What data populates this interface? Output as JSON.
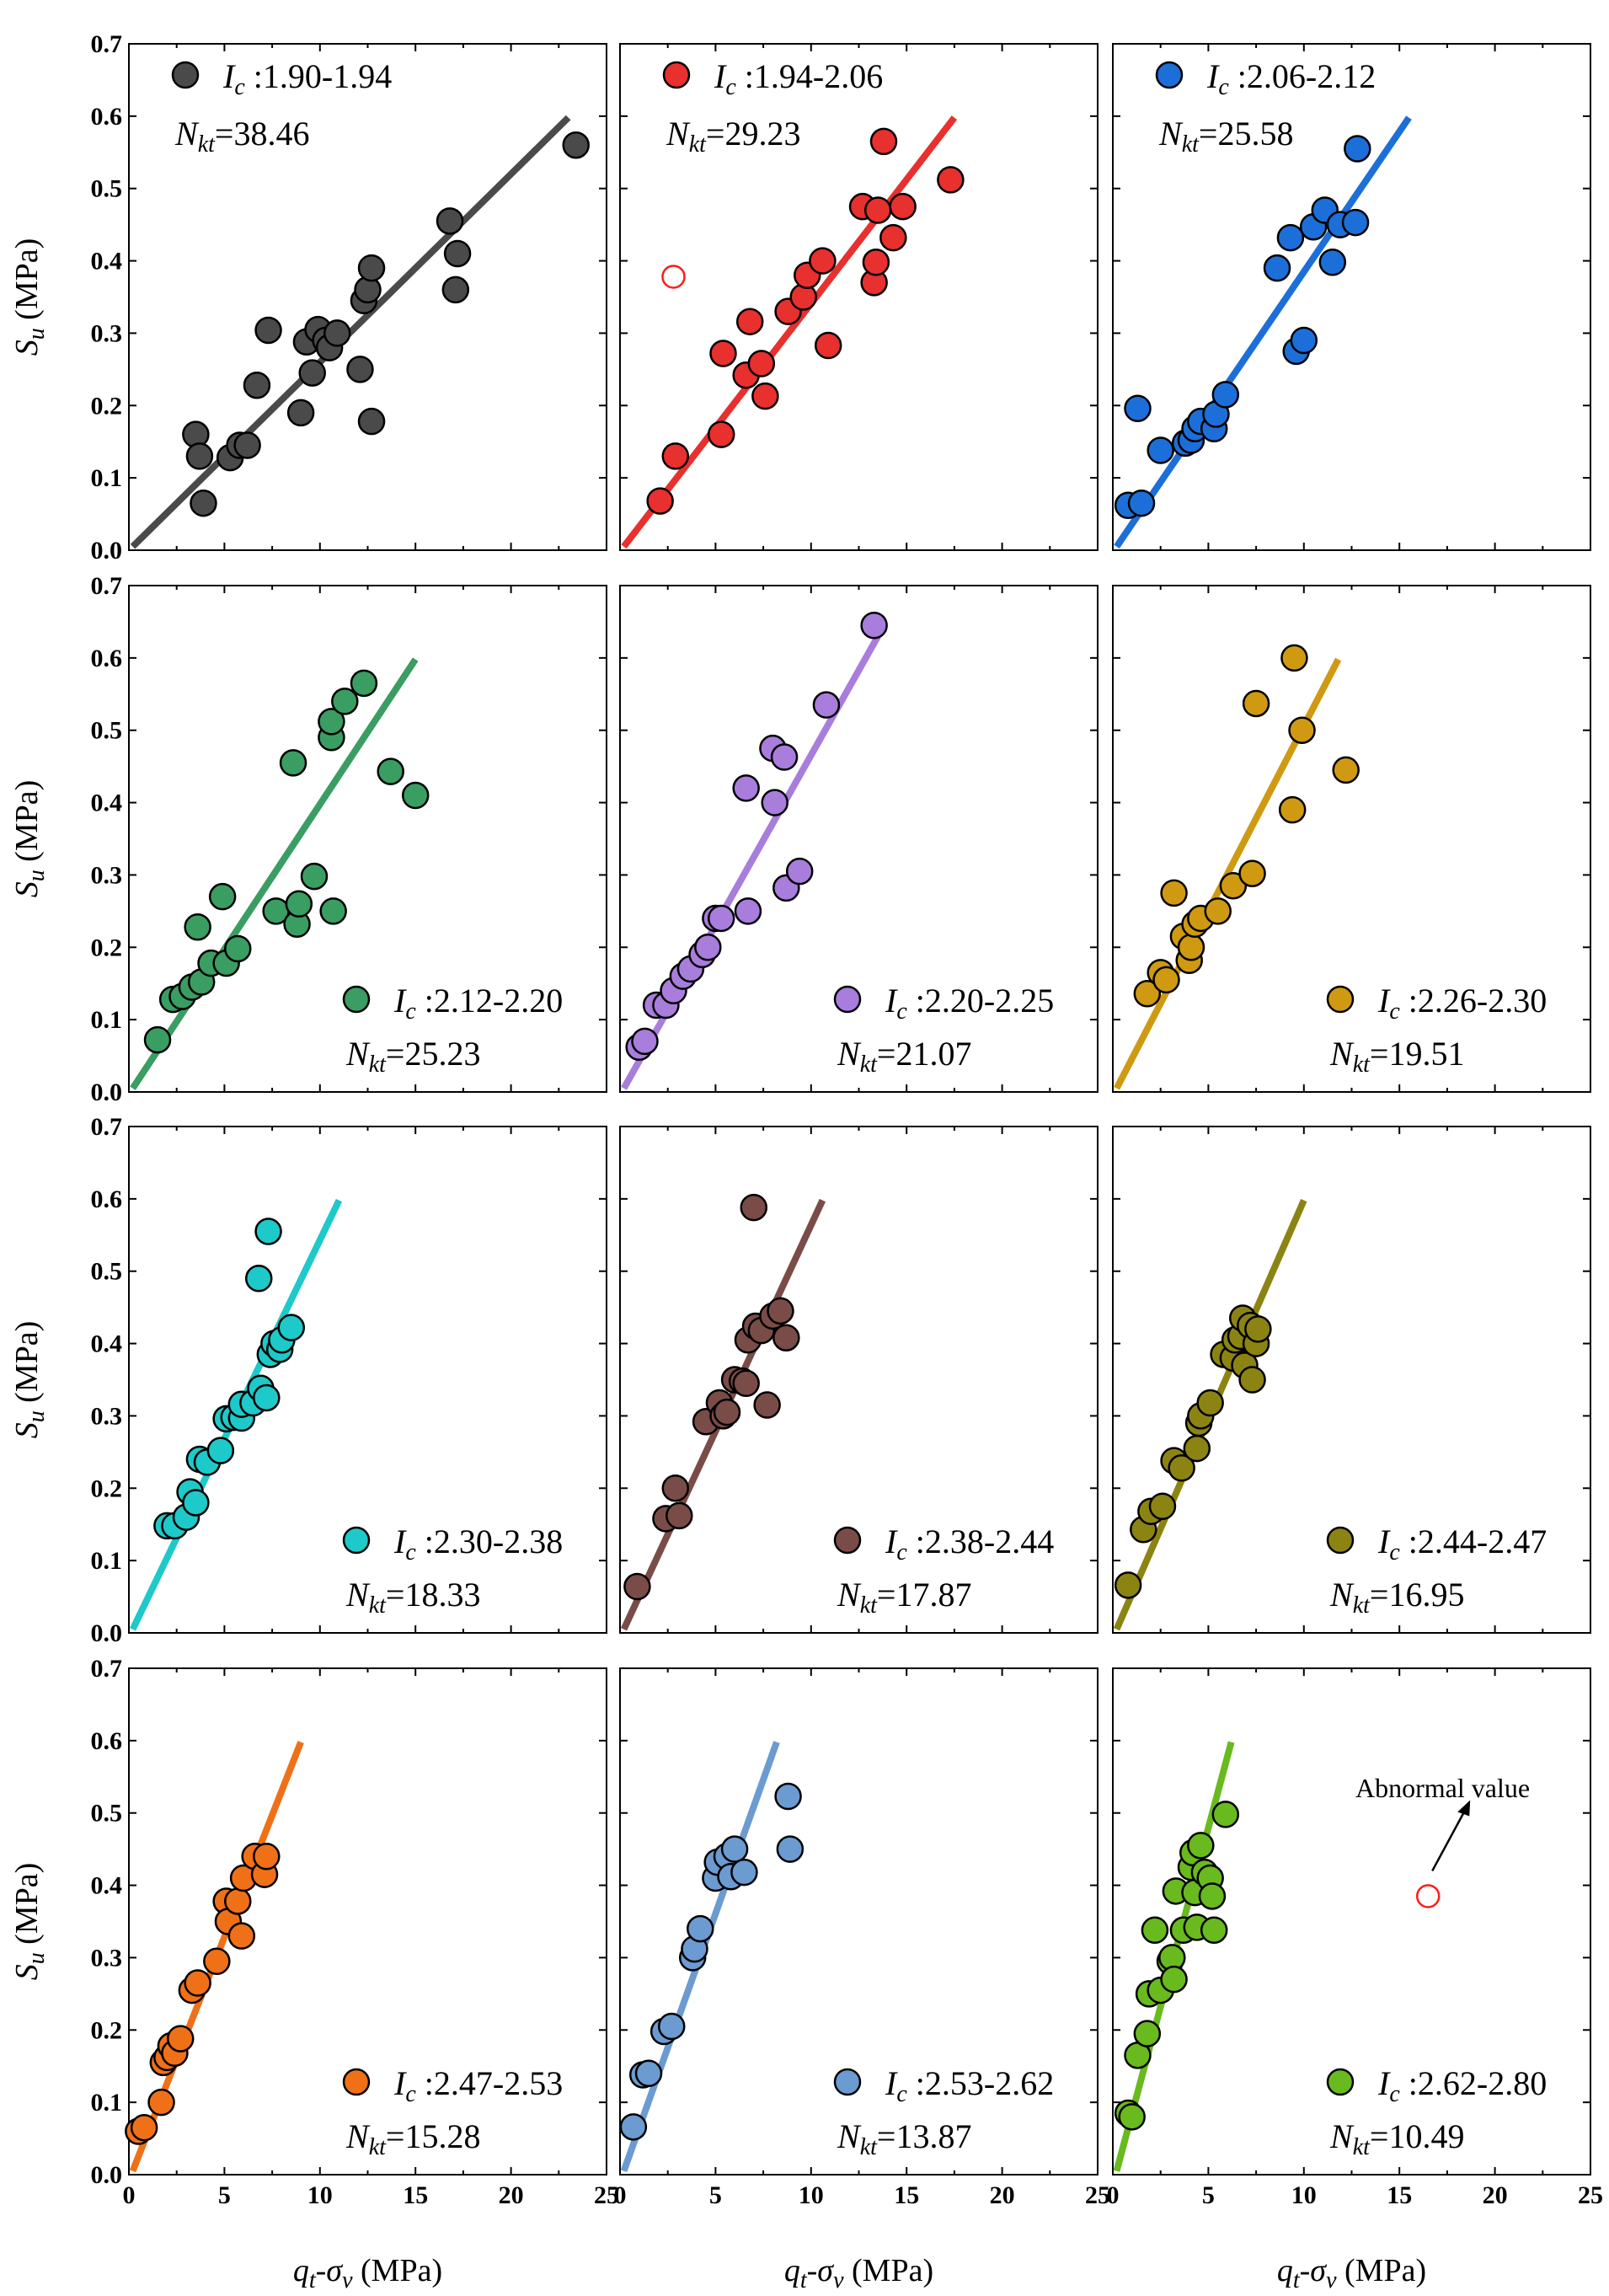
{
  "chart_data": {
    "type": "scatter",
    "layout": "4x3 grid",
    "xlabel_main": "q",
    "xlabel_sub1": "t",
    "xlabel_mid": "-σ",
    "xlabel_sub2": "v",
    "xlabel_unit": " (MPa)",
    "ylabel_main": "S",
    "ylabel_sub": "u",
    "ylabel_unit": " (MPa)",
    "xlim": [
      0,
      25
    ],
    "ylim": [
      0,
      0.7
    ],
    "xticks": [
      "0",
      "5",
      "10",
      "15",
      "20",
      "25"
    ],
    "yticks": [
      "0.0",
      "0.1",
      "0.2",
      "0.3",
      "0.4",
      "0.5",
      "0.6",
      "0.7"
    ],
    "nkt_prefix_main": "N",
    "nkt_prefix_sub": "kt",
    "annotation": {
      "text": "Abnormal value",
      "panel": 11
    },
    "panels": [
      {
        "ic_main": "I",
        "ic_sub": "c",
        "ic_range": " :1.90-1.94",
        "nkt": "=38.46",
        "color": "#4a4a4a",
        "legend_pos": "top",
        "line": [
          [
            0.2,
            0.005
          ],
          [
            23,
            0.598
          ]
        ],
        "points": [
          [
            3.5,
            0.16
          ],
          [
            3.7,
            0.13
          ],
          [
            3.9,
            0.065
          ],
          [
            5.3,
            0.128
          ],
          [
            5.8,
            0.145
          ],
          [
            6.2,
            0.145
          ],
          [
            6.7,
            0.228
          ],
          [
            7.3,
            0.304
          ],
          [
            9.0,
            0.19
          ],
          [
            9.3,
            0.288
          ],
          [
            9.6,
            0.245
          ],
          [
            9.9,
            0.305
          ],
          [
            10.3,
            0.29
          ],
          [
            10.5,
            0.28
          ],
          [
            10.9,
            0.3
          ],
          [
            12.1,
            0.25
          ],
          [
            12.3,
            0.345
          ],
          [
            12.5,
            0.36
          ],
          [
            12.7,
            0.39
          ],
          [
            12.7,
            0.178
          ],
          [
            16.8,
            0.455
          ],
          [
            17.1,
            0.36
          ],
          [
            17.2,
            0.41
          ],
          [
            23.4,
            0.56
          ]
        ],
        "outliers": []
      },
      {
        "ic_main": "I",
        "ic_sub": "c",
        "ic_range": " :1.94-2.06",
        "nkt": "=29.23",
        "color": "#e8302e",
        "legend_pos": "top",
        "line": [
          [
            0.2,
            0.005
          ],
          [
            17.5,
            0.598
          ]
        ],
        "points": [
          [
            2.1,
            0.068
          ],
          [
            2.9,
            0.13
          ],
          [
            5.3,
            0.16
          ],
          [
            5.4,
            0.272
          ],
          [
            6.6,
            0.242
          ],
          [
            6.8,
            0.316
          ],
          [
            7.4,
            0.258
          ],
          [
            7.6,
            0.213
          ],
          [
            8.8,
            0.33
          ],
          [
            9.6,
            0.35
          ],
          [
            9.8,
            0.38
          ],
          [
            10.6,
            0.4
          ],
          [
            10.9,
            0.283
          ],
          [
            12.7,
            0.475
          ],
          [
            13.3,
            0.37
          ],
          [
            13.4,
            0.398
          ],
          [
            13.8,
            0.565
          ],
          [
            14.3,
            0.432
          ],
          [
            14.8,
            0.475
          ],
          [
            17.3,
            0.512
          ],
          [
            13.5,
            0.47
          ]
        ],
        "outliers": [
          [
            2.8,
            0.378
          ]
        ]
      },
      {
        "ic_main": "I",
        "ic_sub": "c",
        "ic_range": " :2.06-2.12",
        "nkt": "=25.58",
        "color": "#1c6fd8",
        "legend_pos": "top",
        "line": [
          [
            0.2,
            0.005
          ],
          [
            15.5,
            0.598
          ]
        ],
        "points": [
          [
            0.8,
            0.062
          ],
          [
            1.3,
            0.196
          ],
          [
            1.5,
            0.065
          ],
          [
            2.5,
            0.138
          ],
          [
            3.8,
            0.148
          ],
          [
            4.1,
            0.152
          ],
          [
            4.3,
            0.168
          ],
          [
            4.6,
            0.178
          ],
          [
            5.3,
            0.168
          ],
          [
            5.4,
            0.188
          ],
          [
            5.9,
            0.215
          ],
          [
            8.6,
            0.39
          ],
          [
            9.3,
            0.432
          ],
          [
            9.6,
            0.275
          ],
          [
            10.0,
            0.29
          ],
          [
            10.5,
            0.447
          ],
          [
            11.1,
            0.47
          ],
          [
            11.5,
            0.398
          ],
          [
            11.9,
            0.45
          ],
          [
            12.7,
            0.453
          ],
          [
            12.8,
            0.555
          ]
        ],
        "outliers": []
      },
      {
        "ic_main": "I",
        "ic_sub": "c",
        "ic_range": " :2.12-2.20",
        "nkt": "=25.23",
        "color": "#3a9d62",
        "legend_pos": "bottom",
        "line": [
          [
            0.2,
            0.005
          ],
          [
            15,
            0.598
          ]
        ],
        "points": [
          [
            1.5,
            0.072
          ],
          [
            2.3,
            0.128
          ],
          [
            2.8,
            0.132
          ],
          [
            3.3,
            0.145
          ],
          [
            3.6,
            0.228
          ],
          [
            3.8,
            0.152
          ],
          [
            4.3,
            0.178
          ],
          [
            4.9,
            0.27
          ],
          [
            5.1,
            0.178
          ],
          [
            5.7,
            0.198
          ],
          [
            7.7,
            0.25
          ],
          [
            8.6,
            0.455
          ],
          [
            8.8,
            0.232
          ],
          [
            8.9,
            0.26
          ],
          [
            9.7,
            0.298
          ],
          [
            10.6,
            0.49
          ],
          [
            10.6,
            0.512
          ],
          [
            10.7,
            0.25
          ],
          [
            11.3,
            0.54
          ],
          [
            12.3,
            0.565
          ],
          [
            13.7,
            0.443
          ],
          [
            15.0,
            0.41
          ]
        ],
        "outliers": []
      },
      {
        "ic_main": "I",
        "ic_sub": "c",
        "ic_range": " :2.20-2.25",
        "nkt": "=21.07",
        "color": "#a87ddc",
        "legend_pos": "bottom",
        "line": [
          [
            0.2,
            0.005
          ],
          [
            13.5,
            0.63
          ]
        ],
        "points": [
          [
            1.0,
            0.062
          ],
          [
            1.3,
            0.07
          ],
          [
            1.9,
            0.12
          ],
          [
            2.4,
            0.12
          ],
          [
            2.8,
            0.14
          ],
          [
            3.3,
            0.16
          ],
          [
            3.7,
            0.17
          ],
          [
            4.3,
            0.19
          ],
          [
            4.6,
            0.2
          ],
          [
            5.0,
            0.24
          ],
          [
            5.3,
            0.24
          ],
          [
            6.6,
            0.42
          ],
          [
            6.7,
            0.25
          ],
          [
            8.0,
            0.475
          ],
          [
            8.1,
            0.4
          ],
          [
            8.6,
            0.463
          ],
          [
            8.7,
            0.282
          ],
          [
            9.4,
            0.305
          ],
          [
            10.8,
            0.535
          ],
          [
            13.3,
            0.645
          ]
        ],
        "outliers": []
      },
      {
        "ic_main": "I",
        "ic_sub": "c",
        "ic_range": " :2.26-2.30",
        "nkt": "=19.51",
        "color": "#cf9a12",
        "legend_pos": "bottom",
        "line": [
          [
            0.2,
            0.005
          ],
          [
            11.8,
            0.598
          ]
        ],
        "points": [
          [
            1.8,
            0.136
          ],
          [
            2.5,
            0.165
          ],
          [
            2.8,
            0.155
          ],
          [
            3.2,
            0.275
          ],
          [
            3.7,
            0.215
          ],
          [
            4.0,
            0.182
          ],
          [
            4.1,
            0.2
          ],
          [
            4.3,
            0.232
          ],
          [
            4.6,
            0.24
          ],
          [
            5.5,
            0.25
          ],
          [
            6.3,
            0.285
          ],
          [
            7.3,
            0.302
          ],
          [
            7.5,
            0.537
          ],
          [
            9.4,
            0.39
          ],
          [
            9.5,
            0.6
          ],
          [
            9.9,
            0.5
          ],
          [
            12.2,
            0.445
          ]
        ],
        "outliers": []
      },
      {
        "ic_main": "I",
        "ic_sub": "c",
        "ic_range": " :2.30-2.38",
        "nkt": "=18.33",
        "color": "#1ec9c9",
        "legend_pos": "bottom",
        "line": [
          [
            0.2,
            0.005
          ],
          [
            11,
            0.598
          ]
        ],
        "points": [
          [
            2.0,
            0.148
          ],
          [
            2.4,
            0.148
          ],
          [
            3.0,
            0.16
          ],
          [
            3.2,
            0.195
          ],
          [
            3.5,
            0.18
          ],
          [
            3.7,
            0.24
          ],
          [
            4.1,
            0.236
          ],
          [
            4.8,
            0.252
          ],
          [
            5.1,
            0.296
          ],
          [
            5.5,
            0.298
          ],
          [
            5.9,
            0.297
          ],
          [
            5.9,
            0.316
          ],
          [
            6.5,
            0.318
          ],
          [
            6.8,
            0.49
          ],
          [
            6.9,
            0.338
          ],
          [
            7.2,
            0.325
          ],
          [
            7.3,
            0.555
          ],
          [
            7.4,
            0.385
          ],
          [
            7.6,
            0.4
          ],
          [
            7.9,
            0.392
          ],
          [
            8.0,
            0.405
          ],
          [
            8.5,
            0.422
          ]
        ],
        "outliers": []
      },
      {
        "ic_main": "I",
        "ic_sub": "c",
        "ic_range": " :2.38-2.44",
        "nkt": "=17.87",
        "color": "#7a4c48",
        "legend_pos": "bottom",
        "line": [
          [
            0.2,
            0.005
          ],
          [
            10.6,
            0.598
          ]
        ],
        "points": [
          [
            0.9,
            0.064
          ],
          [
            2.4,
            0.158
          ],
          [
            2.9,
            0.2
          ],
          [
            3.1,
            0.162
          ],
          [
            4.5,
            0.292
          ],
          [
            5.2,
            0.318
          ],
          [
            5.4,
            0.3
          ],
          [
            5.6,
            0.305
          ],
          [
            6.0,
            0.35
          ],
          [
            6.4,
            0.348
          ],
          [
            6.7,
            0.405
          ],
          [
            7.0,
            0.588
          ],
          [
            7.1,
            0.424
          ],
          [
            7.4,
            0.418
          ],
          [
            7.7,
            0.315
          ],
          [
            8.0,
            0.438
          ],
          [
            8.4,
            0.445
          ],
          [
            8.7,
            0.408
          ],
          [
            6.6,
            0.345
          ]
        ],
        "outliers": []
      },
      {
        "ic_main": "I",
        "ic_sub": "c",
        "ic_range": " :2.44-2.47",
        "nkt": "=16.95",
        "color": "#8b8413",
        "legend_pos": "bottom",
        "line": [
          [
            0.2,
            0.005
          ],
          [
            10,
            0.598
          ]
        ],
        "points": [
          [
            0.8,
            0.066
          ],
          [
            1.6,
            0.143
          ],
          [
            2.0,
            0.168
          ],
          [
            2.6,
            0.175
          ],
          [
            3.2,
            0.238
          ],
          [
            3.6,
            0.228
          ],
          [
            4.4,
            0.255
          ],
          [
            4.5,
            0.29
          ],
          [
            4.6,
            0.3
          ],
          [
            5.1,
            0.318
          ],
          [
            5.8,
            0.385
          ],
          [
            6.3,
            0.38
          ],
          [
            6.4,
            0.405
          ],
          [
            6.7,
            0.41
          ],
          [
            6.8,
            0.435
          ],
          [
            6.9,
            0.37
          ],
          [
            7.2,
            0.425
          ],
          [
            7.3,
            0.35
          ],
          [
            7.5,
            0.4
          ],
          [
            7.6,
            0.42
          ]
        ],
        "outliers": []
      },
      {
        "ic_main": "I",
        "ic_sub": "c",
        "ic_range": " :2.47-2.53",
        "nkt": "=15.28",
        "color": "#f07018",
        "legend_pos": "bottom",
        "line": [
          [
            0.2,
            0.005
          ],
          [
            9,
            0.598
          ]
        ],
        "points": [
          [
            0.5,
            0.06
          ],
          [
            0.8,
            0.065
          ],
          [
            1.7,
            0.1
          ],
          [
            1.8,
            0.155
          ],
          [
            2.0,
            0.162
          ],
          [
            2.2,
            0.178
          ],
          [
            2.4,
            0.168
          ],
          [
            2.7,
            0.188
          ],
          [
            3.3,
            0.255
          ],
          [
            3.6,
            0.265
          ],
          [
            4.6,
            0.295
          ],
          [
            5.1,
            0.378
          ],
          [
            5.2,
            0.35
          ],
          [
            5.7,
            0.378
          ],
          [
            5.9,
            0.33
          ],
          [
            6.0,
            0.41
          ],
          [
            6.6,
            0.44
          ],
          [
            7.1,
            0.415
          ],
          [
            7.2,
            0.44
          ]
        ],
        "outliers": []
      },
      {
        "ic_main": "I",
        "ic_sub": "c",
        "ic_range": " :2.53-2.62",
        "nkt": "=13.87",
        "color": "#6b9bd0",
        "legend_pos": "bottom",
        "line": [
          [
            0.2,
            0.005
          ],
          [
            8.2,
            0.598
          ]
        ],
        "points": [
          [
            0.7,
            0.066
          ],
          [
            1.2,
            0.138
          ],
          [
            1.5,
            0.14
          ],
          [
            2.3,
            0.198
          ],
          [
            2.7,
            0.205
          ],
          [
            3.8,
            0.3
          ],
          [
            3.9,
            0.312
          ],
          [
            4.2,
            0.34
          ],
          [
            5.0,
            0.41
          ],
          [
            5.1,
            0.432
          ],
          [
            5.6,
            0.44
          ],
          [
            5.8,
            0.412
          ],
          [
            6.0,
            0.45
          ],
          [
            6.5,
            0.418
          ],
          [
            8.8,
            0.523
          ],
          [
            8.9,
            0.45
          ]
        ],
        "outliers": []
      },
      {
        "ic_main": "I",
        "ic_sub": "c",
        "ic_range": " :2.62-2.80",
        "nkt": "=10.49",
        "color": "#69ba1e",
        "legend_pos": "bottom",
        "line": [
          [
            0.2,
            0.005
          ],
          [
            6.2,
            0.598
          ]
        ],
        "points": [
          [
            0.8,
            0.085
          ],
          [
            1.0,
            0.08
          ],
          [
            1.3,
            0.165
          ],
          [
            1.8,
            0.195
          ],
          [
            1.9,
            0.25
          ],
          [
            2.2,
            0.338
          ],
          [
            2.5,
            0.255
          ],
          [
            3.0,
            0.295
          ],
          [
            3.1,
            0.3
          ],
          [
            3.2,
            0.27
          ],
          [
            3.3,
            0.392
          ],
          [
            3.7,
            0.338
          ],
          [
            4.1,
            0.425
          ],
          [
            4.2,
            0.445
          ],
          [
            4.3,
            0.39
          ],
          [
            4.4,
            0.342
          ],
          [
            4.6,
            0.455
          ],
          [
            4.8,
            0.418
          ],
          [
            5.1,
            0.41
          ],
          [
            5.2,
            0.385
          ],
          [
            5.3,
            0.338
          ],
          [
            5.9,
            0.498
          ]
        ],
        "outliers": [
          [
            16.5,
            0.385
          ]
        ]
      }
    ]
  }
}
